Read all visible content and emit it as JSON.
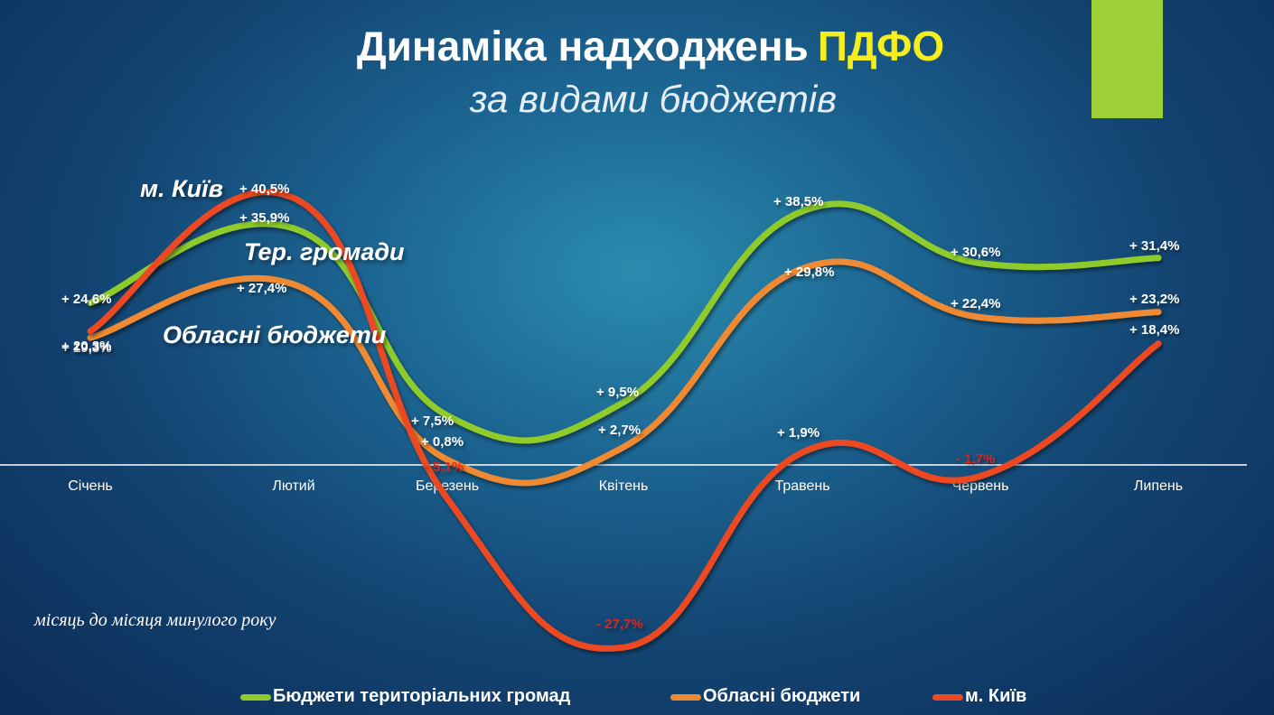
{
  "header": {
    "title": "Динаміка надходжень",
    "title_highlight": "ПДФО",
    "subtitle": "за видами бюджетів"
  },
  "note": "місяць до місяця минулого року",
  "colors": {
    "ter": "#8fcb29",
    "obl": "#ef8a30",
    "kyiv": "#ec4a22",
    "negative_label": "#d8281e",
    "axis": "#ffffff"
  },
  "chart_data": {
    "type": "line",
    "title": "Динаміка надходжень ПДФО за видами бюджетів",
    "categories": [
      "Січень",
      "Лютий",
      "Березень",
      "Квітень",
      "Травень",
      "Червень",
      "Липень"
    ],
    "ylim": [
      -40,
      50
    ],
    "grid": false,
    "legend_position": "bottom",
    "series": [
      {
        "key": "ter",
        "name": "Бюджети територіальних громад",
        "annotation": "Тер. громади",
        "values": [
          24.6,
          35.9,
          7.5,
          9.5,
          38.5,
          30.6,
          31.4
        ],
        "labels": [
          "+ 24,6%",
          "+ 35,9%",
          "+ 7,5%",
          "+ 9,5%",
          "+ 38,5%",
          "+ 30,6%",
          "+ 31,4%"
        ]
      },
      {
        "key": "obl",
        "name": "Обласні бюджети",
        "annotation": "Обласні бюджети",
        "values": [
          19.3,
          27.4,
          0.8,
          2.7,
          29.8,
          22.4,
          23.2
        ],
        "labels": [
          "+ 19,3%",
          "+ 27,4%",
          "+ 0,8%",
          "+ 2,7%",
          "+ 29,8%",
          "+ 22,4%",
          "+ 23,2%"
        ]
      },
      {
        "key": "kyiv",
        "name": "м. Київ",
        "annotation": "м. Київ",
        "values": [
          20.3,
          40.5,
          -5.1,
          -27.7,
          1.9,
          -1.7,
          18.4
        ],
        "labels": [
          "+ 20,3%",
          "+ 40,5%",
          "- 5,1%",
          "- 27,7%",
          "+ 1,9%",
          "- 1,7%",
          "+ 18,4%"
        ]
      }
    ]
  }
}
